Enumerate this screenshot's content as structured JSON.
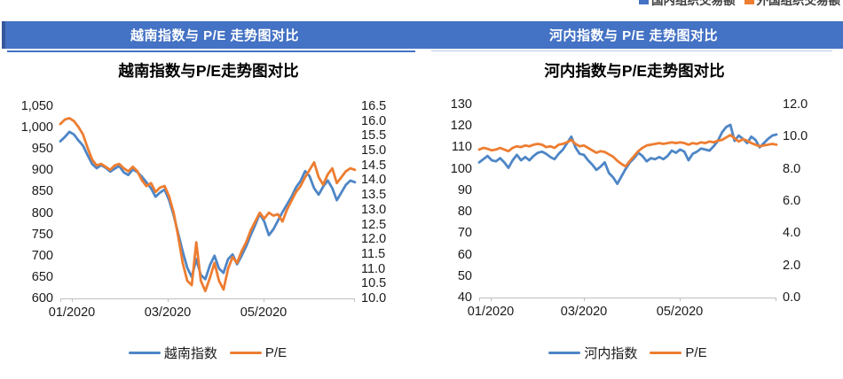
{
  "top_clipped_legend": {
    "items": [
      {
        "label": "国内组织交易额",
        "color": "#4472C4"
      },
      {
        "label": "外国组织交易额",
        "color": "#ED7D31"
      }
    ]
  },
  "banners": {
    "left": "越南指数与 P/E 走势图对比",
    "right": "河内指数与 P/E 走势图对比",
    "bg_color": "#4472C4",
    "text_color": "#FFFFFF"
  },
  "style_colors": {
    "axis_line": "#BFBFBF",
    "axis_text": "#1a1a1a",
    "series_blue": "#4E86C6",
    "series_orange": "#ED7D31"
  },
  "chart_data": [
    {
      "type": "line",
      "title": "越南指数与P/E走势图对比",
      "x_tick_labels": [
        "01/2020",
        "03/2020",
        "05/2020"
      ],
      "grid": false,
      "legend_position": "bottom",
      "left_axis": {
        "min": 600,
        "max": 1050,
        "tick_labels": [
          "1,050",
          "1,000",
          "950",
          "900",
          "850",
          "800",
          "750",
          "700",
          "650",
          "600"
        ]
      },
      "right_axis": {
        "min": 10.0,
        "max": 16.5,
        "tick_labels": [
          "16.5",
          "16.0",
          "15.5",
          "15.0",
          "14.5",
          "14.0",
          "13.5",
          "13.0",
          "12.5",
          "12.0",
          "11.5",
          "11.0",
          "10.5",
          "10.0"
        ]
      },
      "series": [
        {
          "name": "越南指数",
          "axis": "left",
          "color": "#4E86C6",
          "values": [
            968,
            978,
            990,
            984,
            970,
            958,
            936,
            915,
            905,
            912,
            906,
            897,
            904,
            910,
            895,
            889,
            902,
            896,
            885,
            872,
            858,
            838,
            848,
            855,
            830,
            795,
            752,
            710,
            672,
            650,
            692,
            655,
            645,
            678,
            700,
            670,
            660,
            692,
            703,
            680,
            700,
            722,
            748,
            772,
            798,
            780,
            748,
            762,
            782,
            802,
            820,
            838,
            860,
            875,
            898,
            886,
            858,
            843,
            862,
            876,
            858,
            830,
            848,
            866,
            876,
            872
          ]
        },
        {
          "name": "P/E",
          "axis": "right",
          "color": "#ED7D31",
          "values": [
            15.9,
            16.05,
            16.1,
            16.0,
            15.8,
            15.55,
            15.1,
            14.7,
            14.5,
            14.55,
            14.45,
            14.35,
            14.5,
            14.55,
            14.4,
            14.3,
            14.45,
            14.3,
            14.0,
            13.8,
            13.9,
            13.6,
            13.75,
            13.8,
            13.45,
            12.9,
            12.1,
            11.2,
            10.6,
            10.45,
            11.9,
            10.6,
            10.25,
            10.7,
            11.2,
            10.6,
            10.3,
            11.0,
            11.4,
            11.2,
            11.6,
            11.9,
            12.3,
            12.6,
            12.9,
            12.7,
            12.9,
            12.8,
            12.85,
            12.6,
            13.0,
            13.3,
            13.6,
            13.8,
            14.1,
            14.35,
            14.6,
            14.1,
            13.85,
            14.2,
            14.4,
            13.9,
            14.1,
            14.3,
            14.4,
            14.35
          ]
        }
      ]
    },
    {
      "type": "line",
      "title": "河内指数与P/E走势图对比",
      "x_tick_labels": [
        "01/2020",
        "03/2020",
        "05/2020"
      ],
      "grid": false,
      "legend_position": "bottom",
      "left_axis": {
        "min": 40,
        "max": 130,
        "tick_labels": [
          "130",
          "120",
          "110",
          "100",
          "90",
          "80",
          "70",
          "60",
          "50",
          "40"
        ]
      },
      "right_axis": {
        "min": 0.0,
        "max": 12.0,
        "tick_labels": [
          "12.0",
          "10.0",
          "8.0",
          "6.0",
          "4.0",
          "2.0",
          "0.0"
        ]
      },
      "series": [
        {
          "name": "河内指数",
          "axis": "left",
          "color": "#4E86C6",
          "values": [
            103,
            104.5,
            106,
            104,
            103.5,
            105,
            103,
            100.5,
            104,
            106.5,
            104,
            105.5,
            104,
            106,
            107.5,
            108,
            107,
            105.5,
            104.5,
            107,
            109,
            112,
            115,
            110,
            107,
            106.5,
            104,
            102,
            99.5,
            101,
            103,
            98,
            96,
            93,
            96.5,
            100,
            103,
            105,
            107.5,
            106,
            103.5,
            105,
            104.5,
            105.5,
            104.5,
            106,
            108.5,
            107.5,
            109,
            108,
            104,
            107,
            108,
            109.5,
            109,
            108.5,
            110.5,
            113,
            117,
            119.5,
            120.5,
            113,
            115.5,
            114,
            112,
            115,
            113.5,
            110,
            112,
            114,
            115.5,
            116
          ]
        },
        {
          "name": "P/E",
          "axis": "right",
          "color": "#ED7D31",
          "values": [
            9.2,
            9.3,
            9.25,
            9.15,
            9.2,
            9.3,
            9.2,
            9.1,
            9.3,
            9.4,
            9.35,
            9.45,
            9.4,
            9.5,
            9.55,
            9.5,
            9.35,
            9.4,
            9.3,
            9.5,
            9.55,
            9.65,
            9.8,
            9.55,
            9.4,
            9.45,
            9.3,
            9.15,
            9.0,
            9.1,
            9.05,
            8.9,
            8.75,
            8.5,
            8.3,
            8.15,
            8.5,
            8.8,
            9.1,
            9.3,
            9.45,
            9.5,
            9.55,
            9.6,
            9.55,
            9.6,
            9.65,
            9.6,
            9.65,
            9.6,
            9.5,
            9.6,
            9.55,
            9.65,
            9.6,
            9.7,
            9.65,
            9.75,
            9.8,
            9.95,
            10.1,
            9.9,
            9.7,
            9.85,
            9.75,
            9.6,
            9.5,
            9.4,
            9.45,
            9.5,
            9.55,
            9.5
          ]
        }
      ]
    }
  ]
}
